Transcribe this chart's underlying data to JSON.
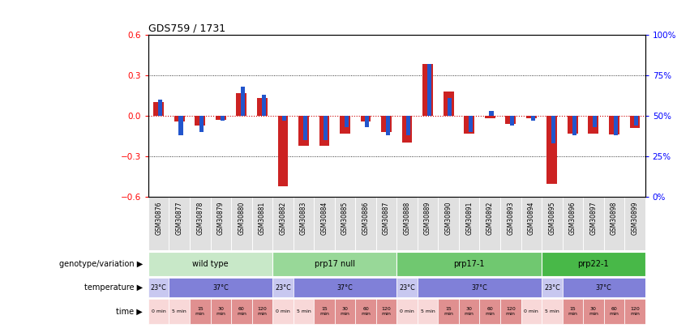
{
  "title": "GDS759 / 1731",
  "samples": [
    "GSM30876",
    "GSM30877",
    "GSM30878",
    "GSM30879",
    "GSM30880",
    "GSM30881",
    "GSM30882",
    "GSM30883",
    "GSM30884",
    "GSM30885",
    "GSM30886",
    "GSM30887",
    "GSM30888",
    "GSM30889",
    "GSM30890",
    "GSM30891",
    "GSM30892",
    "GSM30893",
    "GSM30894",
    "GSM30895",
    "GSM30896",
    "GSM30897",
    "GSM30898",
    "GSM30899"
  ],
  "log_ratio": [
    0.1,
    -0.04,
    -0.07,
    -0.03,
    0.17,
    0.13,
    -0.52,
    -0.22,
    -0.22,
    -0.13,
    -0.04,
    -0.12,
    -0.2,
    0.38,
    0.18,
    -0.13,
    -0.02,
    -0.06,
    -0.02,
    -0.5,
    -0.13,
    -0.13,
    -0.14,
    -0.09
  ],
  "percentile": [
    0.6,
    0.38,
    0.4,
    0.47,
    0.68,
    0.63,
    0.47,
    0.35,
    0.35,
    0.43,
    0.43,
    0.38,
    0.38,
    0.82,
    0.61,
    0.4,
    0.53,
    0.44,
    0.47,
    0.33,
    0.38,
    0.43,
    0.38,
    0.44
  ],
  "ylim_left": [
    -0.6,
    0.6
  ],
  "bar_color_red": "#cc2222",
  "bar_color_blue": "#2255cc",
  "bg_color": "#ffffff",
  "zero_line_color": "#cc0000",
  "genotype_groups": [
    {
      "label": "wild type",
      "start": 0,
      "end": 5,
      "color": "#c8e8c8"
    },
    {
      "label": "prp17 null",
      "start": 6,
      "end": 11,
      "color": "#98d898"
    },
    {
      "label": "prp17-1",
      "start": 12,
      "end": 18,
      "color": "#70c870"
    },
    {
      "label": "prp22-1",
      "start": 19,
      "end": 23,
      "color": "#48b848"
    }
  ],
  "temp_segs": [
    {
      "label": "23°C",
      "start": 0,
      "end": 0,
      "color": "#c8c8f0"
    },
    {
      "label": "37°C",
      "start": 1,
      "end": 5,
      "color": "#8080d8"
    },
    {
      "label": "23°C",
      "start": 6,
      "end": 6,
      "color": "#c8c8f0"
    },
    {
      "label": "37°C",
      "start": 7,
      "end": 11,
      "color": "#8080d8"
    },
    {
      "label": "23°C",
      "start": 12,
      "end": 12,
      "color": "#c8c8f0"
    },
    {
      "label": "37°C",
      "start": 13,
      "end": 18,
      "color": "#8080d8"
    },
    {
      "label": "23°C",
      "start": 19,
      "end": 19,
      "color": "#c8c8f0"
    },
    {
      "label": "37°C",
      "start": 20,
      "end": 23,
      "color": "#8080d8"
    }
  ],
  "time_segs": [
    {
      "label": "0 min",
      "start": 0,
      "end": 0,
      "color": "#f8d8d8"
    },
    {
      "label": "5 min",
      "start": 1,
      "end": 1,
      "color": "#f8d8d8"
    },
    {
      "label": "15\nmin",
      "start": 2,
      "end": 2,
      "color": "#e09090"
    },
    {
      "label": "30\nmin",
      "start": 3,
      "end": 3,
      "color": "#e09090"
    },
    {
      "label": "60\nmin",
      "start": 4,
      "end": 4,
      "color": "#e09090"
    },
    {
      "label": "120\nmin",
      "start": 5,
      "end": 5,
      "color": "#e09090"
    },
    {
      "label": "0 min",
      "start": 6,
      "end": 6,
      "color": "#f8d8d8"
    },
    {
      "label": "5 min",
      "start": 7,
      "end": 7,
      "color": "#f8d8d8"
    },
    {
      "label": "15\nmin",
      "start": 8,
      "end": 8,
      "color": "#e09090"
    },
    {
      "label": "30\nmin",
      "start": 9,
      "end": 9,
      "color": "#e09090"
    },
    {
      "label": "60\nmin",
      "start": 10,
      "end": 10,
      "color": "#e09090"
    },
    {
      "label": "120\nmin",
      "start": 11,
      "end": 11,
      "color": "#e09090"
    },
    {
      "label": "0 min",
      "start": 12,
      "end": 12,
      "color": "#f8d8d8"
    },
    {
      "label": "5 min",
      "start": 13,
      "end": 13,
      "color": "#f8d8d8"
    },
    {
      "label": "15\nmin",
      "start": 14,
      "end": 14,
      "color": "#e09090"
    },
    {
      "label": "30\nmin",
      "start": 15,
      "end": 15,
      "color": "#e09090"
    },
    {
      "label": "60\nmin",
      "start": 16,
      "end": 16,
      "color": "#e09090"
    },
    {
      "label": "120\nmin",
      "start": 17,
      "end": 17,
      "color": "#e09090"
    },
    {
      "label": "0 min",
      "start": 18,
      "end": 18,
      "color": "#f8d8d8"
    },
    {
      "label": "5 min",
      "start": 19,
      "end": 19,
      "color": "#f8d8d8"
    },
    {
      "label": "15\nmin",
      "start": 20,
      "end": 20,
      "color": "#e09090"
    },
    {
      "label": "30\nmin",
      "start": 21,
      "end": 21,
      "color": "#e09090"
    },
    {
      "label": "60\nmin",
      "start": 22,
      "end": 22,
      "color": "#e09090"
    },
    {
      "label": "120\nmin",
      "start": 23,
      "end": 23,
      "color": "#e09090"
    }
  ],
  "row_labels": [
    "genotype/variation",
    "temperature",
    "time"
  ],
  "sample_box_color": "#e0e0e0"
}
